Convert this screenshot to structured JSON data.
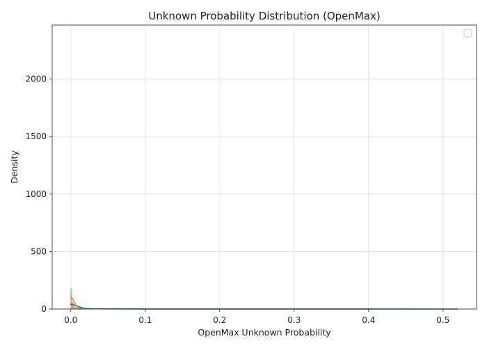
{
  "chart_data": {
    "type": "area",
    "title": "Unknown Probability Distribution (OpenMax)",
    "xlabel": "OpenMax Unknown Probability",
    "ylabel": "Density",
    "xlim": [
      -0.025,
      0.545
    ],
    "ylim": [
      0,
      2470
    ],
    "xticks": [
      0.0,
      0.1,
      0.2,
      0.3,
      0.4,
      0.5
    ],
    "xtick_labels": [
      "0.0",
      "0.1",
      "0.2",
      "0.3",
      "0.4",
      "0.5"
    ],
    "yticks": [
      0,
      500,
      1000,
      1500,
      2000
    ],
    "ytick_labels": [
      "0",
      "500",
      "1000",
      "1500",
      "2000"
    ],
    "grid": true,
    "legend": {
      "placement": "top-right",
      "entries": []
    },
    "series": [
      {
        "color": "#1f77b4",
        "histogram": {
          "bins": [
            [
              0.0,
              0.0015,
              180
            ],
            [
              0.0015,
              0.003,
              60
            ],
            [
              0.003,
              0.006,
              30
            ],
            [
              0.006,
              0.01,
              12
            ],
            [
              0.01,
              0.02,
              4
            ]
          ]
        },
        "kde": {
          "x": [
            0.0,
            0.002,
            0.005,
            0.008,
            0.012,
            0.016,
            0.02,
            0.025,
            0.03,
            0.04,
            0.06,
            0.1,
            0.2,
            0.3,
            0.4,
            0.5,
            0.52
          ],
          "y": [
            40,
            42,
            35,
            28,
            18,
            10,
            5,
            3,
            2,
            1.5,
            1,
            0.5,
            0.3,
            0.2,
            0.1,
            0.05,
            0.05
          ]
        }
      },
      {
        "color": "#ff7f0e",
        "histogram": {
          "bins": [
            [
              0.0,
              0.0015,
              120
            ],
            [
              0.0015,
              0.003,
              40
            ],
            [
              0.003,
              0.006,
              15
            ]
          ]
        },
        "kde": {
          "x": [
            0.0,
            0.001,
            0.003,
            0.005,
            0.007,
            0.009,
            0.011,
            0.014,
            0.018
          ],
          "y": [
            100,
            102,
            85,
            55,
            30,
            15,
            8,
            3,
            0.5
          ]
        }
      }
    ]
  }
}
